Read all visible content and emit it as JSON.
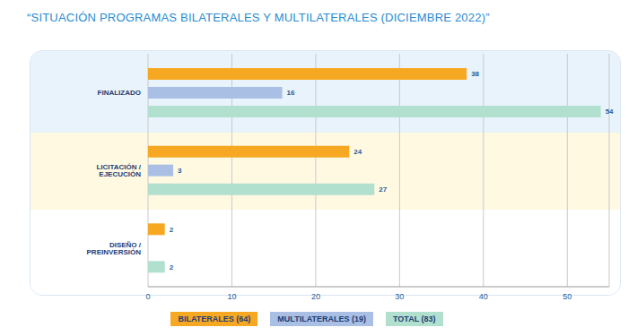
{
  "chart_data": {
    "type": "bar",
    "orientation": "horizontal",
    "title": "“SITUACIÓN PROGRAMAS BILATERALES Y MULTILATERALES (DICIEMBRE 2022)”",
    "categories": [
      "FINALIZADO",
      "LICITACIÓN / EJECUCIÓN",
      "DISEÑO / PREINVERSIÓN"
    ],
    "series": [
      {
        "name": "BILATERALES (64)",
        "color": "#f7a823",
        "values": [
          38,
          24,
          2
        ]
      },
      {
        "name": "MULTILATERALES (19)",
        "color": "#a9bfe3",
        "values": [
          16,
          3,
          0
        ]
      },
      {
        "name": "TOTAL (83)",
        "color": "#b2e0cf",
        "values": [
          54,
          27,
          2
        ]
      }
    ],
    "xlim": [
      0,
      55
    ],
    "xticks": [
      0,
      10,
      20,
      30,
      40,
      50
    ],
    "grid": true,
    "data_labels": true,
    "legend": "bottom"
  }
}
